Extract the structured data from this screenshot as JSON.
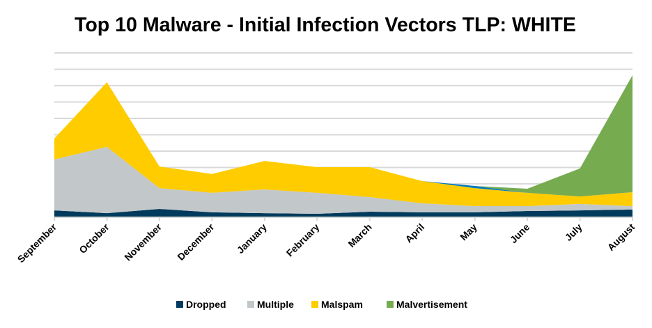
{
  "chart_data": {
    "type": "area",
    "stacked": true,
    "title": "Top 10 Malware - Initial Infection Vectors TLP: WHITE",
    "xlabel": "",
    "ylabel": "",
    "categories": [
      "September",
      "October",
      "November",
      "December",
      "January",
      "February",
      "March",
      "April",
      "May",
      "June",
      "July",
      "August"
    ],
    "ylim": [
      0,
      10
    ],
    "y_tick_labels_shown": false,
    "grid": true,
    "legend_position": "bottom",
    "series": [
      {
        "name": "Dropped",
        "color": "#003a5c",
        "values": [
          0.38,
          0.21,
          0.47,
          0.26,
          0.21,
          0.17,
          0.3,
          0.26,
          0.26,
          0.34,
          0.38,
          0.43
        ]
      },
      {
        "name": "Multiple",
        "color": "#c2c7c9",
        "values": [
          3.11,
          4.05,
          1.27,
          1.19,
          1.45,
          1.28,
          0.89,
          0.55,
          0.38,
          0.3,
          0.39,
          0.21
        ]
      },
      {
        "name": "Malspam",
        "color": "#ffcc00",
        "values": [
          1.28,
          3.95,
          1.32,
          1.15,
          1.74,
          1.57,
          1.83,
          1.36,
          1.1,
          0.81,
          0.46,
          0.85
        ]
      },
      {
        "color": "#0079c1",
        "values": [
          0,
          0,
          0,
          0,
          0,
          0,
          0,
          0,
          0.13,
          0,
          0,
          0
        ]
      },
      {
        "name": "Malvertisement",
        "color": "#76ab50",
        "values": [
          0,
          0,
          0,
          0,
          0,
          0,
          0,
          0,
          0,
          0.25,
          1.71,
          7.15
        ]
      }
    ]
  }
}
